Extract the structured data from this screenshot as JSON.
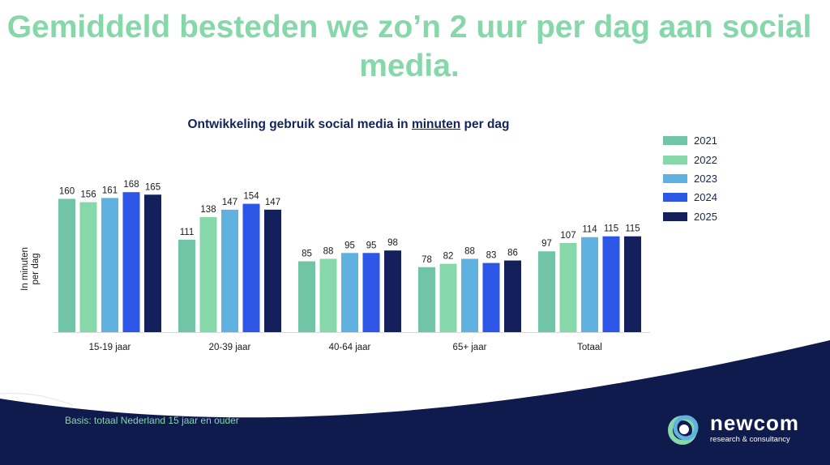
{
  "headline": "Gemiddeld besteden we zo’n 2 uur per dag aan social media.",
  "chart_title": {
    "prefix": "Ontwikkeling gebruik social media in ",
    "underlined": "minuten",
    "suffix": " per dag"
  },
  "basis": "Basis: totaal Nederland 15 jaar en ouder",
  "logo": {
    "name": "newcom",
    "tagline": "research & consultancy"
  },
  "colors": {
    "2021": "#71c4a6",
    "2022": "#86d7a9",
    "2023": "#5fb1e0",
    "2024": "#2d55e6",
    "2025": "#14205c",
    "headline": "#86d7a9",
    "navy": "#0f1a4d"
  },
  "chart_data": {
    "type": "bar",
    "title": "Ontwikkeling gebruik social media in minuten per dag",
    "ylabel": "In minuten per dag",
    "xlabel": "",
    "ylim": [
      0,
      175
    ],
    "grid": false,
    "legend_position": "top-right",
    "categories": [
      "15-19 jaar",
      "20-39 jaar",
      "40-64 jaar",
      "65+ jaar",
      "Totaal"
    ],
    "series": [
      {
        "name": "2021",
        "values": [
          160,
          111,
          85,
          78,
          97
        ]
      },
      {
        "name": "2022",
        "values": [
          156,
          138,
          88,
          82,
          107
        ]
      },
      {
        "name": "2023",
        "values": [
          161,
          147,
          95,
          88,
          114
        ]
      },
      {
        "name": "2024",
        "values": [
          168,
          154,
          95,
          83,
          115
        ]
      },
      {
        "name": "2025",
        "values": [
          165,
          147,
          98,
          86,
          115
        ]
      }
    ]
  }
}
